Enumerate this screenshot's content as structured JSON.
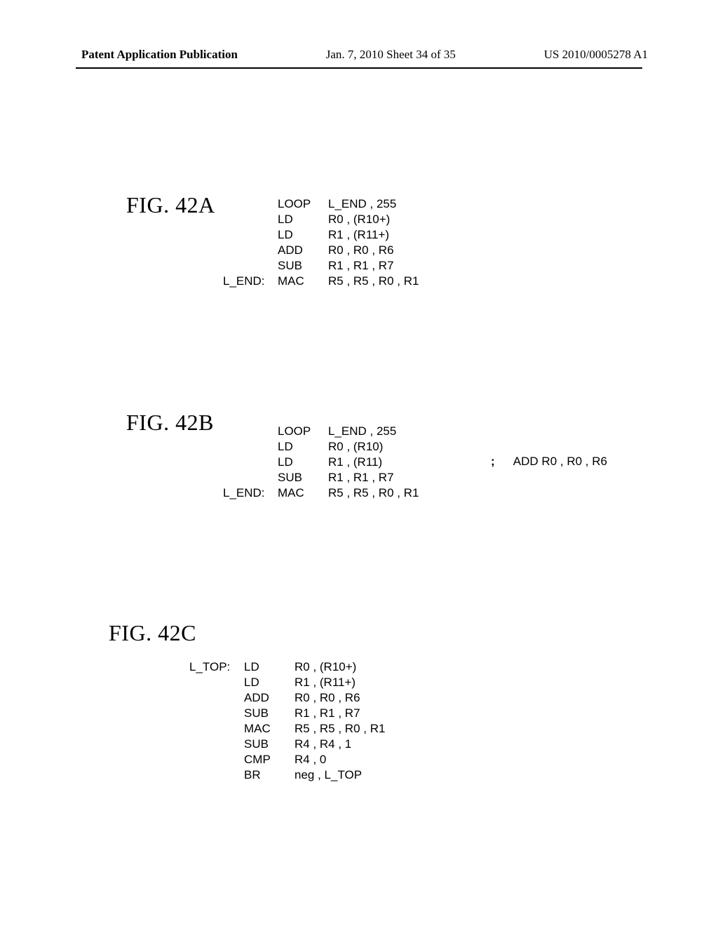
{
  "header": {
    "left": "Patent Application Publication",
    "mid": "Jan. 7, 2010  Sheet 34 of 35",
    "right": "US 2010/0005278 A1"
  },
  "figA": {
    "label": "FIG. 42A",
    "lines": [
      {
        "label": "",
        "op": "LOOP",
        "args": "L_END , 255"
      },
      {
        "label": "",
        "op": "LD",
        "args": "R0 , (R10+)"
      },
      {
        "label": "",
        "op": "LD",
        "args": "R1 , (R11+)"
      },
      {
        "label": "",
        "op": "ADD",
        "args": "R0 , R0 , R6"
      },
      {
        "label": "",
        "op": "SUB",
        "args": "R1 , R1 , R7"
      },
      {
        "label": "L_END:",
        "op": "MAC",
        "args": "R5 , R5 , R0 , R1"
      }
    ]
  },
  "figB": {
    "label": "FIG. 42B",
    "lines": [
      {
        "label": "",
        "op": "LOOP",
        "args": "L_END , 255"
      },
      {
        "label": "",
        "op": "LD",
        "args": "R0 , (R10)"
      },
      {
        "label": "",
        "op": "LD",
        "args": "R1 , (R11)"
      },
      {
        "label": "",
        "op": "SUB",
        "args": "R1 , R1 , R7"
      },
      {
        "label": "L_END:",
        "op": "MAC",
        "args": "R5 , R5 , R0 , R1"
      }
    ],
    "comment": {
      "semi": ";",
      "text": "ADD R0 , R0 , R6"
    }
  },
  "figC": {
    "label": "FIG. 42C",
    "lines": [
      {
        "label": "L_TOP:",
        "op": "LD",
        "args": "R0 , (R10+)"
      },
      {
        "label": "",
        "op": "LD",
        "args": "R1 , (R11+)"
      },
      {
        "label": "",
        "op": "ADD",
        "args": "R0 , R0 , R6"
      },
      {
        "label": "",
        "op": "SUB",
        "args": "R1 , R1 , R7"
      },
      {
        "label": "",
        "op": "MAC",
        "args": "R5 , R5 , R0 , R1"
      },
      {
        "label": "",
        "op": "SUB",
        "args": "R4 , R4  , 1"
      },
      {
        "label": "",
        "op": "CMP",
        "args": "R4 , 0"
      },
      {
        "label": "",
        "op": "BR",
        "args": "neg , L_TOP"
      }
    ]
  }
}
